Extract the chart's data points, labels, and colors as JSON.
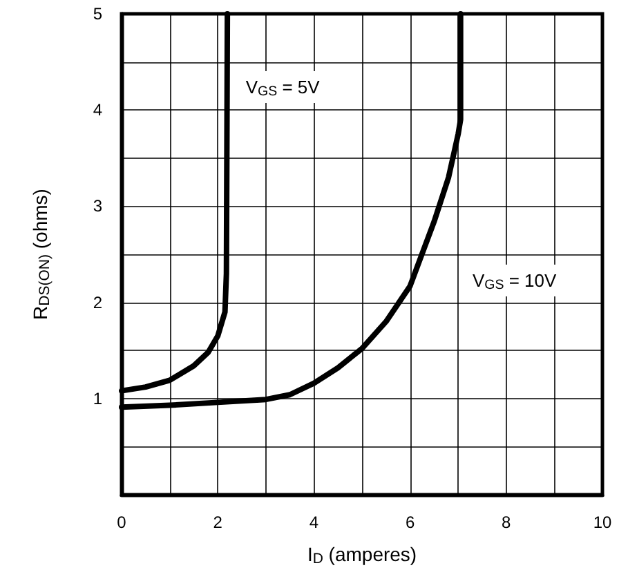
{
  "chart_data": {
    "type": "line",
    "xlabel": "I$_{D}$ (amperes)",
    "ylabel": "R$_{DS(ON)}$ (ohms)",
    "xlim": [
      0,
      10
    ],
    "ylim": [
      0,
      5
    ],
    "xticks": [
      0,
      {
        "value": 1,
        "label": null
      },
      2,
      {
        "value": 3,
        "label": null
      },
      4,
      {
        "value": 5,
        "label": null
      },
      6,
      {
        "value": 7,
        "label": null
      },
      8,
      {
        "value": 9,
        "label": null
      },
      10
    ],
    "yticks": [
      {
        "value": 0,
        "label": null
      },
      {
        "value": 0.5,
        "label": null
      },
      1,
      {
        "value": 1.5,
        "label": null
      },
      2,
      {
        "value": 2.5,
        "label": null
      },
      3,
      {
        "value": 3.5,
        "label": null
      },
      4,
      {
        "value": 4.5,
        "label": null
      },
      5
    ],
    "grid": true,
    "marker": "none",
    "line_style": "solid",
    "series": [
      {
        "name": "V$_{GS}$ = 5V",
        "color": "#000000",
        "x": [
          0,
          0.5,
          1,
          1.5,
          1.8,
          2,
          2.15,
          2.18,
          2.2
        ],
        "values": [
          1.08,
          1.12,
          1.19,
          1.34,
          1.48,
          1.65,
          1.9,
          2.3,
          5
        ]
      },
      {
        "name": "V$_{GS}$ = 10V",
        "color": "#000000",
        "x": [
          0,
          1,
          2,
          3,
          3.5,
          4,
          4.5,
          5,
          5.5,
          6,
          6.5,
          6.8,
          7,
          7.05,
          7.05
        ],
        "values": [
          0.91,
          0.93,
          0.96,
          0.99,
          1.04,
          1.16,
          1.32,
          1.52,
          1.8,
          2.17,
          2.84,
          3.3,
          3.75,
          3.9,
          5
        ]
      }
    ]
  }
}
